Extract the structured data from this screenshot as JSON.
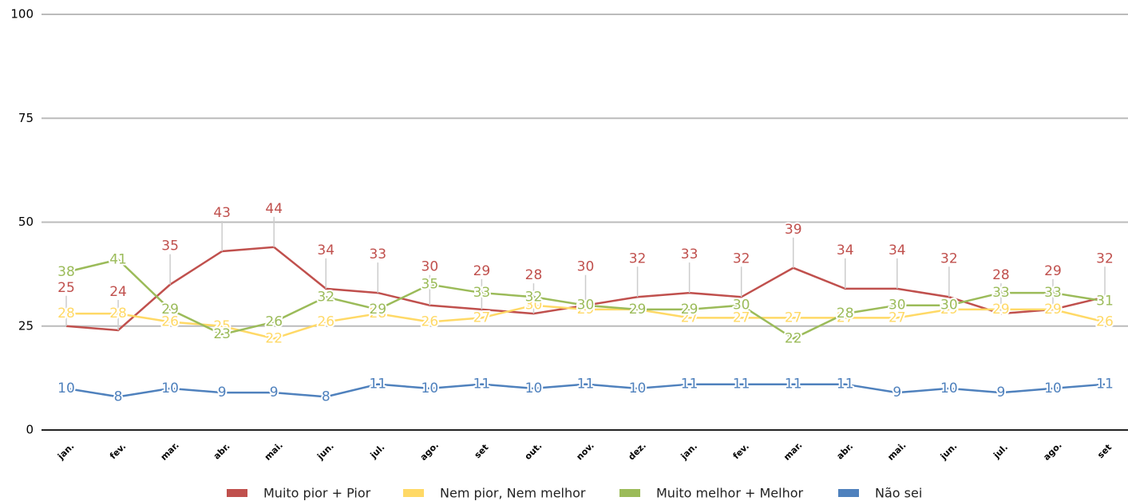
{
  "chart_data": {
    "type": "line",
    "categories": [
      "jan.",
      "fev.",
      "mar.",
      "abr.",
      "mai.",
      "jun.",
      "jul.",
      "ago.",
      "set",
      "out.",
      "nov.",
      "dez.",
      "jan.",
      "fev.",
      "mar.",
      "abr.",
      "mai.",
      "jun.",
      "jul.",
      "ago.",
      "set"
    ],
    "series": [
      {
        "name": "Muito pior + Pior",
        "color": "#c0504d",
        "values": [
          25,
          24,
          35,
          43,
          44,
          34,
          33,
          30,
          29,
          28,
          30,
          32,
          33,
          32,
          39,
          34,
          34,
          32,
          28,
          29,
          32
        ]
      },
      {
        "name": "Nem pior, Nem melhor",
        "color": "#ffd966",
        "values": [
          28,
          28,
          26,
          25,
          22,
          26,
          28,
          26,
          27,
          30,
          29,
          29,
          27,
          27,
          27,
          27,
          27,
          29,
          29,
          29,
          26
        ]
      },
      {
        "name": "Muito melhor + Melhor",
        "color": "#9bbb59",
        "values": [
          38,
          41,
          29,
          23,
          26,
          32,
          29,
          35,
          33,
          32,
          30,
          29,
          29,
          30,
          22,
          28,
          30,
          30,
          33,
          33,
          31
        ]
      },
      {
        "name": "Não sei",
        "color": "#4f81bd",
        "values": [
          10,
          8,
          10,
          9,
          9,
          8,
          11,
          10,
          11,
          10,
          11,
          10,
          11,
          11,
          11,
          11,
          9,
          10,
          9,
          10,
          11
        ]
      }
    ],
    "ylim": [
      0,
      100
    ],
    "yticks": [
      0,
      25,
      50,
      75,
      100
    ],
    "grid": true,
    "legend": "bottom"
  }
}
